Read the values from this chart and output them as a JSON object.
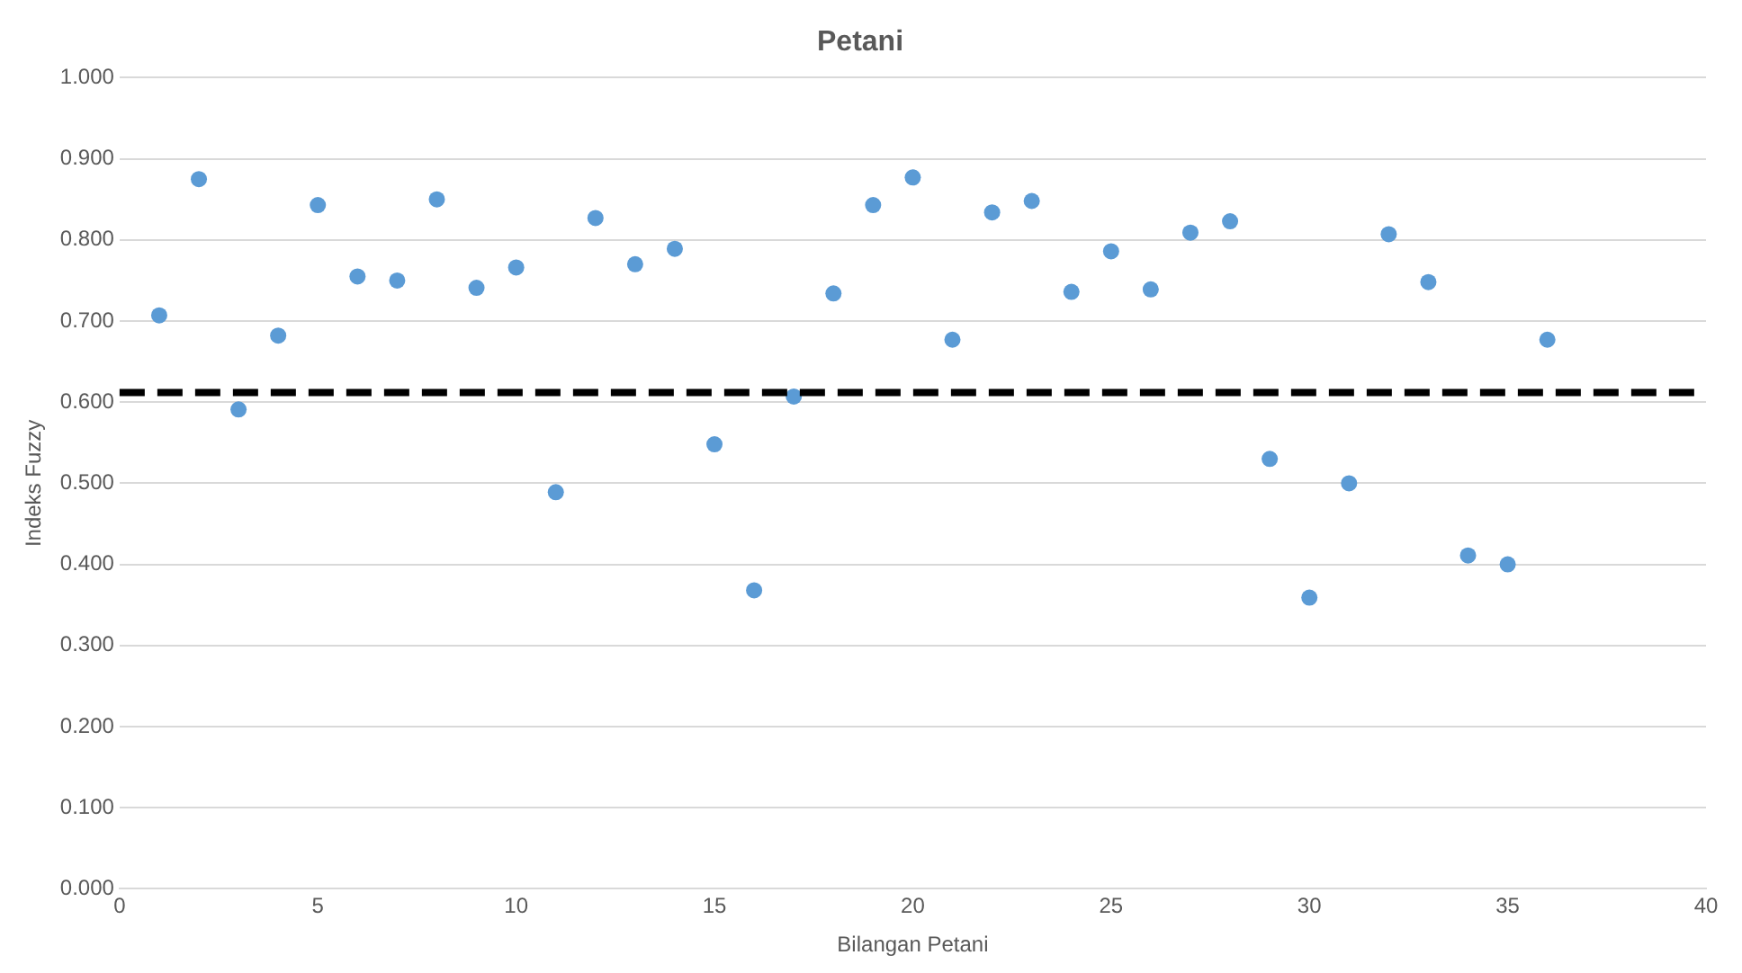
{
  "chart_data": {
    "type": "scatter",
    "title": "Petani",
    "xlabel": "Bilangan Petani",
    "ylabel": "Indeks Fuzzy",
    "x": [
      1,
      2,
      3,
      4,
      5,
      6,
      7,
      8,
      9,
      10,
      11,
      12,
      13,
      14,
      15,
      16,
      17,
      18,
      19,
      20,
      21,
      22,
      23,
      24,
      25,
      26,
      27,
      28,
      29,
      30,
      31,
      32,
      33,
      34,
      35,
      36
    ],
    "series": [
      {
        "color": "#5b9bd5",
        "values": [
          0.707,
          0.875,
          0.591,
          0.682,
          0.843,
          0.755,
          0.75,
          0.85,
          0.741,
          0.766,
          0.489,
          0.827,
          0.77,
          0.789,
          0.548,
          0.368,
          0.607,
          0.734,
          0.843,
          0.877,
          0.677,
          0.834,
          0.848,
          0.736,
          0.786,
          0.739,
          0.809,
          0.823,
          0.53,
          0.359,
          0.5,
          0.807,
          0.748,
          0.411,
          0.4,
          0.677
        ]
      }
    ],
    "xlim": [
      0,
      40
    ],
    "xticks": [
      0,
      5,
      10,
      15,
      20,
      25,
      30,
      35,
      40
    ],
    "ylim": [
      0,
      1
    ],
    "yticks": [
      {
        "value": 0,
        "label": "0.000"
      },
      {
        "value": 0.1,
        "label": "0.100"
      },
      {
        "value": 0.2,
        "label": "0.200"
      },
      {
        "value": 0.3,
        "label": "0.300"
      },
      {
        "value": 0.4,
        "label": "0.400"
      },
      {
        "value": 0.5,
        "label": "0.500"
      },
      {
        "value": 0.6,
        "label": "0.600"
      },
      {
        "value": 0.7,
        "label": "0.700"
      },
      {
        "value": 0.8,
        "label": "0.800"
      },
      {
        "value": 0.9,
        "label": "0.900"
      },
      {
        "value": 1,
        "label": "1.000"
      }
    ],
    "ref_lines": [
      {
        "axis": "y",
        "value": 0.612,
        "color": "#000000",
        "line_style": "dashed"
      }
    ],
    "grid": "y",
    "legend": false,
    "marker": "circle"
  }
}
